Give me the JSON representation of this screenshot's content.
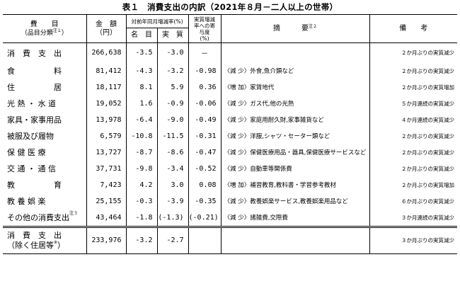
{
  "title": "表１　消費支出の内訳（2021年８月－二人以上の世帯）",
  "headers": {
    "item": "費　　目",
    "item_sub": "（品目分類",
    "item_sub_note": "注１",
    "item_sub_close": "）",
    "amount": "金　額",
    "amount_unit": "（円）",
    "yoy": "対前年同月増減率(%)",
    "nominal": "名　目",
    "real": "実　質",
    "contrib": "実質増減率への寄与度",
    "contrib_unit": "(%)",
    "summary": "摘　　　要",
    "summary_note": "注２",
    "remarks": "備　　考"
  },
  "rows": [
    {
      "name": "消　費　支　出",
      "amount": "266,638",
      "nominal": "-3.5",
      "real": "-3.0",
      "contrib": "－",
      "summary": "",
      "remarks": "２か月ぶりの実質減少"
    },
    {
      "name": "食　　　　　料",
      "amount": "81,412",
      "nominal": "-4.3",
      "real": "-3.2",
      "contrib": "-0.98",
      "summary": "〈減 少〉外食,魚介類など",
      "remarks": "２か月ぶりの実質減少"
    },
    {
      "name": "住　　　　　居",
      "amount": "18,117",
      "nominal": "8.1",
      "real": "5.9",
      "contrib": "0.36",
      "summary": "〈増 加〉家賃地代",
      "remarks": "２か月ぶりの実質増加"
    },
    {
      "name": "光 熱 ・ 水 道",
      "amount": "19,052",
      "nominal": "1.6",
      "real": "-0.9",
      "contrib": "-0.06",
      "summary": "〈減 少〉ガス代,他の光熱",
      "remarks": "５か月連続の実質減少"
    },
    {
      "name": "家具・家事用品",
      "amount": "13,978",
      "nominal": "-6.4",
      "real": "-9.0",
      "contrib": "-0.49",
      "summary": "〈減 少〉家庭用耐久財,家事雑貨など",
      "remarks": "４か月連続の実質減少"
    },
    {
      "name": "被服及び履物",
      "amount": "6,579",
      "nominal": "-10.8",
      "real": "-11.5",
      "contrib": "-0.31",
      "summary": "〈減 少〉洋服,シャツ・セーター類など",
      "remarks": "２か月ぶりの実質減少"
    },
    {
      "name": "保 健 医 療",
      "amount": "13,727",
      "nominal": "-8.7",
      "real": "-8.6",
      "contrib": "-0.47",
      "summary": "〈減 少〉保健医療用品・器具,保健医療サービスなど",
      "remarks": "２か月ぶりの実質減少"
    },
    {
      "name": "交 通 ・ 通 信",
      "amount": "37,731",
      "nominal": "-9.8",
      "real": "-3.4",
      "contrib": "-0.52",
      "summary": "〈減 少〉自動車等関係費",
      "remarks": "２か月ぶりの実質減少"
    },
    {
      "name": "教　　　　　育",
      "amount": "7,423",
      "nominal": "4.2",
      "real": "3.0",
      "contrib": "0.08",
      "summary": "〈増 加〉補習教育,教科書・学習参考教材",
      "remarks": "２か月ぶりの実質増加"
    },
    {
      "name": "教 養 娯 楽",
      "amount": "25,155",
      "nominal": "-0.3",
      "real": "-3.9",
      "contrib": "-0.35",
      "summary": "〈減 少〉教養娯楽サービス,教養娯楽用品など",
      "remarks": "６か月ぶりの実質減少"
    },
    {
      "name": "その他の消費支出",
      "name_note": "注３",
      "amount": "43,464",
      "nominal": "-1.8",
      "real": "(-1.3)",
      "contrib": "(-0.21)",
      "summary": "〈減 少〉諸雑費,交際費",
      "remarks": "３か月連続の実質減少"
    }
  ],
  "footer_row": {
    "name1": "消　費　支　出",
    "name2": "（除く住居等",
    "name2_note": "※",
    "name2_close": "）",
    "amount": "233,976",
    "nominal": "-3.2",
    "real": "-2.7",
    "contrib": "",
    "summary": "",
    "remarks": "３か月ぶりの実質減少"
  }
}
